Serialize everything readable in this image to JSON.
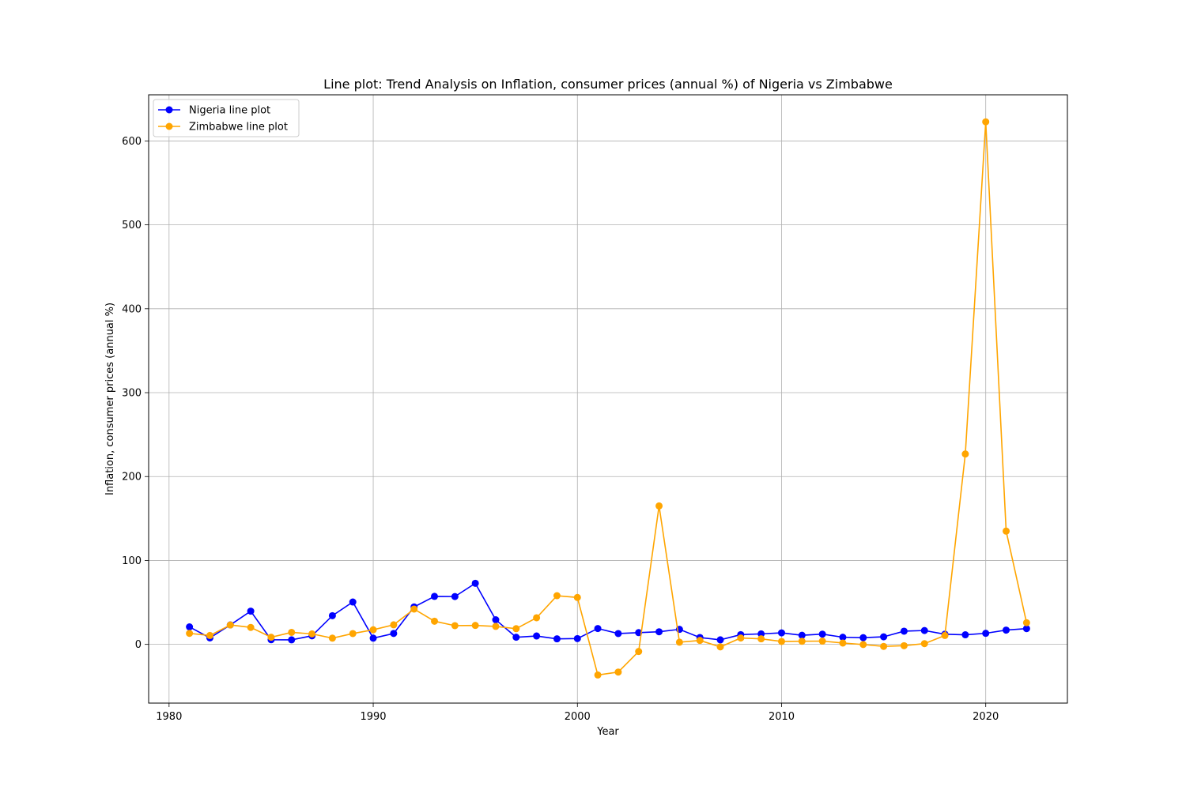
{
  "chart_data": {
    "type": "line",
    "title": "Line plot: Trend Analysis on Inflation, consumer prices (annual %) of Nigeria vs Zimbabwe",
    "xlabel": "Year",
    "ylabel": "Inflation, consumer prices (annual %)",
    "xlim": [
      1979,
      2024
    ],
    "ylim": [
      -70,
      655
    ],
    "xticks": [
      1980,
      1990,
      2000,
      2010,
      2020
    ],
    "yticks": [
      0,
      100,
      200,
      300,
      400,
      500,
      600
    ],
    "grid": true,
    "legend_position": "top-left",
    "x": [
      1981,
      1982,
      1983,
      1984,
      1985,
      1986,
      1987,
      1988,
      1989,
      1990,
      1991,
      1992,
      1993,
      1994,
      1995,
      1996,
      1997,
      1998,
      1999,
      2000,
      2001,
      2002,
      2003,
      2004,
      2005,
      2006,
      2007,
      2008,
      2009,
      2010,
      2011,
      2012,
      2013,
      2014,
      2015,
      2016,
      2017,
      2018,
      2019,
      2020,
      2021,
      2022
    ],
    "series": [
      {
        "name": "Nigeria line plot",
        "color": "#0000ff",
        "values": [
          20.8,
          7.7,
          23.2,
          39.6,
          5.5,
          5.4,
          10.2,
          34.2,
          50.5,
          7.4,
          13.0,
          44.6,
          57.2,
          57.0,
          72.8,
          29.3,
          8.5,
          10.0,
          6.6,
          6.9,
          18.9,
          12.9,
          14.0,
          15.0,
          17.9,
          8.2,
          5.4,
          11.6,
          12.5,
          13.7,
          10.8,
          12.2,
          8.5,
          8.0,
          9.0,
          15.7,
          16.5,
          12.1,
          11.4,
          13.2,
          17.0,
          18.8
        ],
        "values_note": ""
      },
      {
        "name": "Zimbabwe line plot",
        "color": "#ffa500",
        "values": [
          13.1,
          10.6,
          23.1,
          20.2,
          8.5,
          14.3,
          12.5,
          7.4,
          12.9,
          17.4,
          23.3,
          42.1,
          27.6,
          22.3,
          22.6,
          21.4,
          18.7,
          31.7,
          58.0,
          55.9,
          -36.5,
          -33.0,
          -8.5,
          165.0,
          2.6,
          4.7,
          -3.0,
          7.6,
          6.6,
          3.5,
          3.7,
          3.9,
          1.6,
          -0.2,
          -2.4,
          -1.6,
          0.9,
          10.6,
          226.9,
          622.8,
          135.0,
          25.8
        ]
      }
    ]
  }
}
